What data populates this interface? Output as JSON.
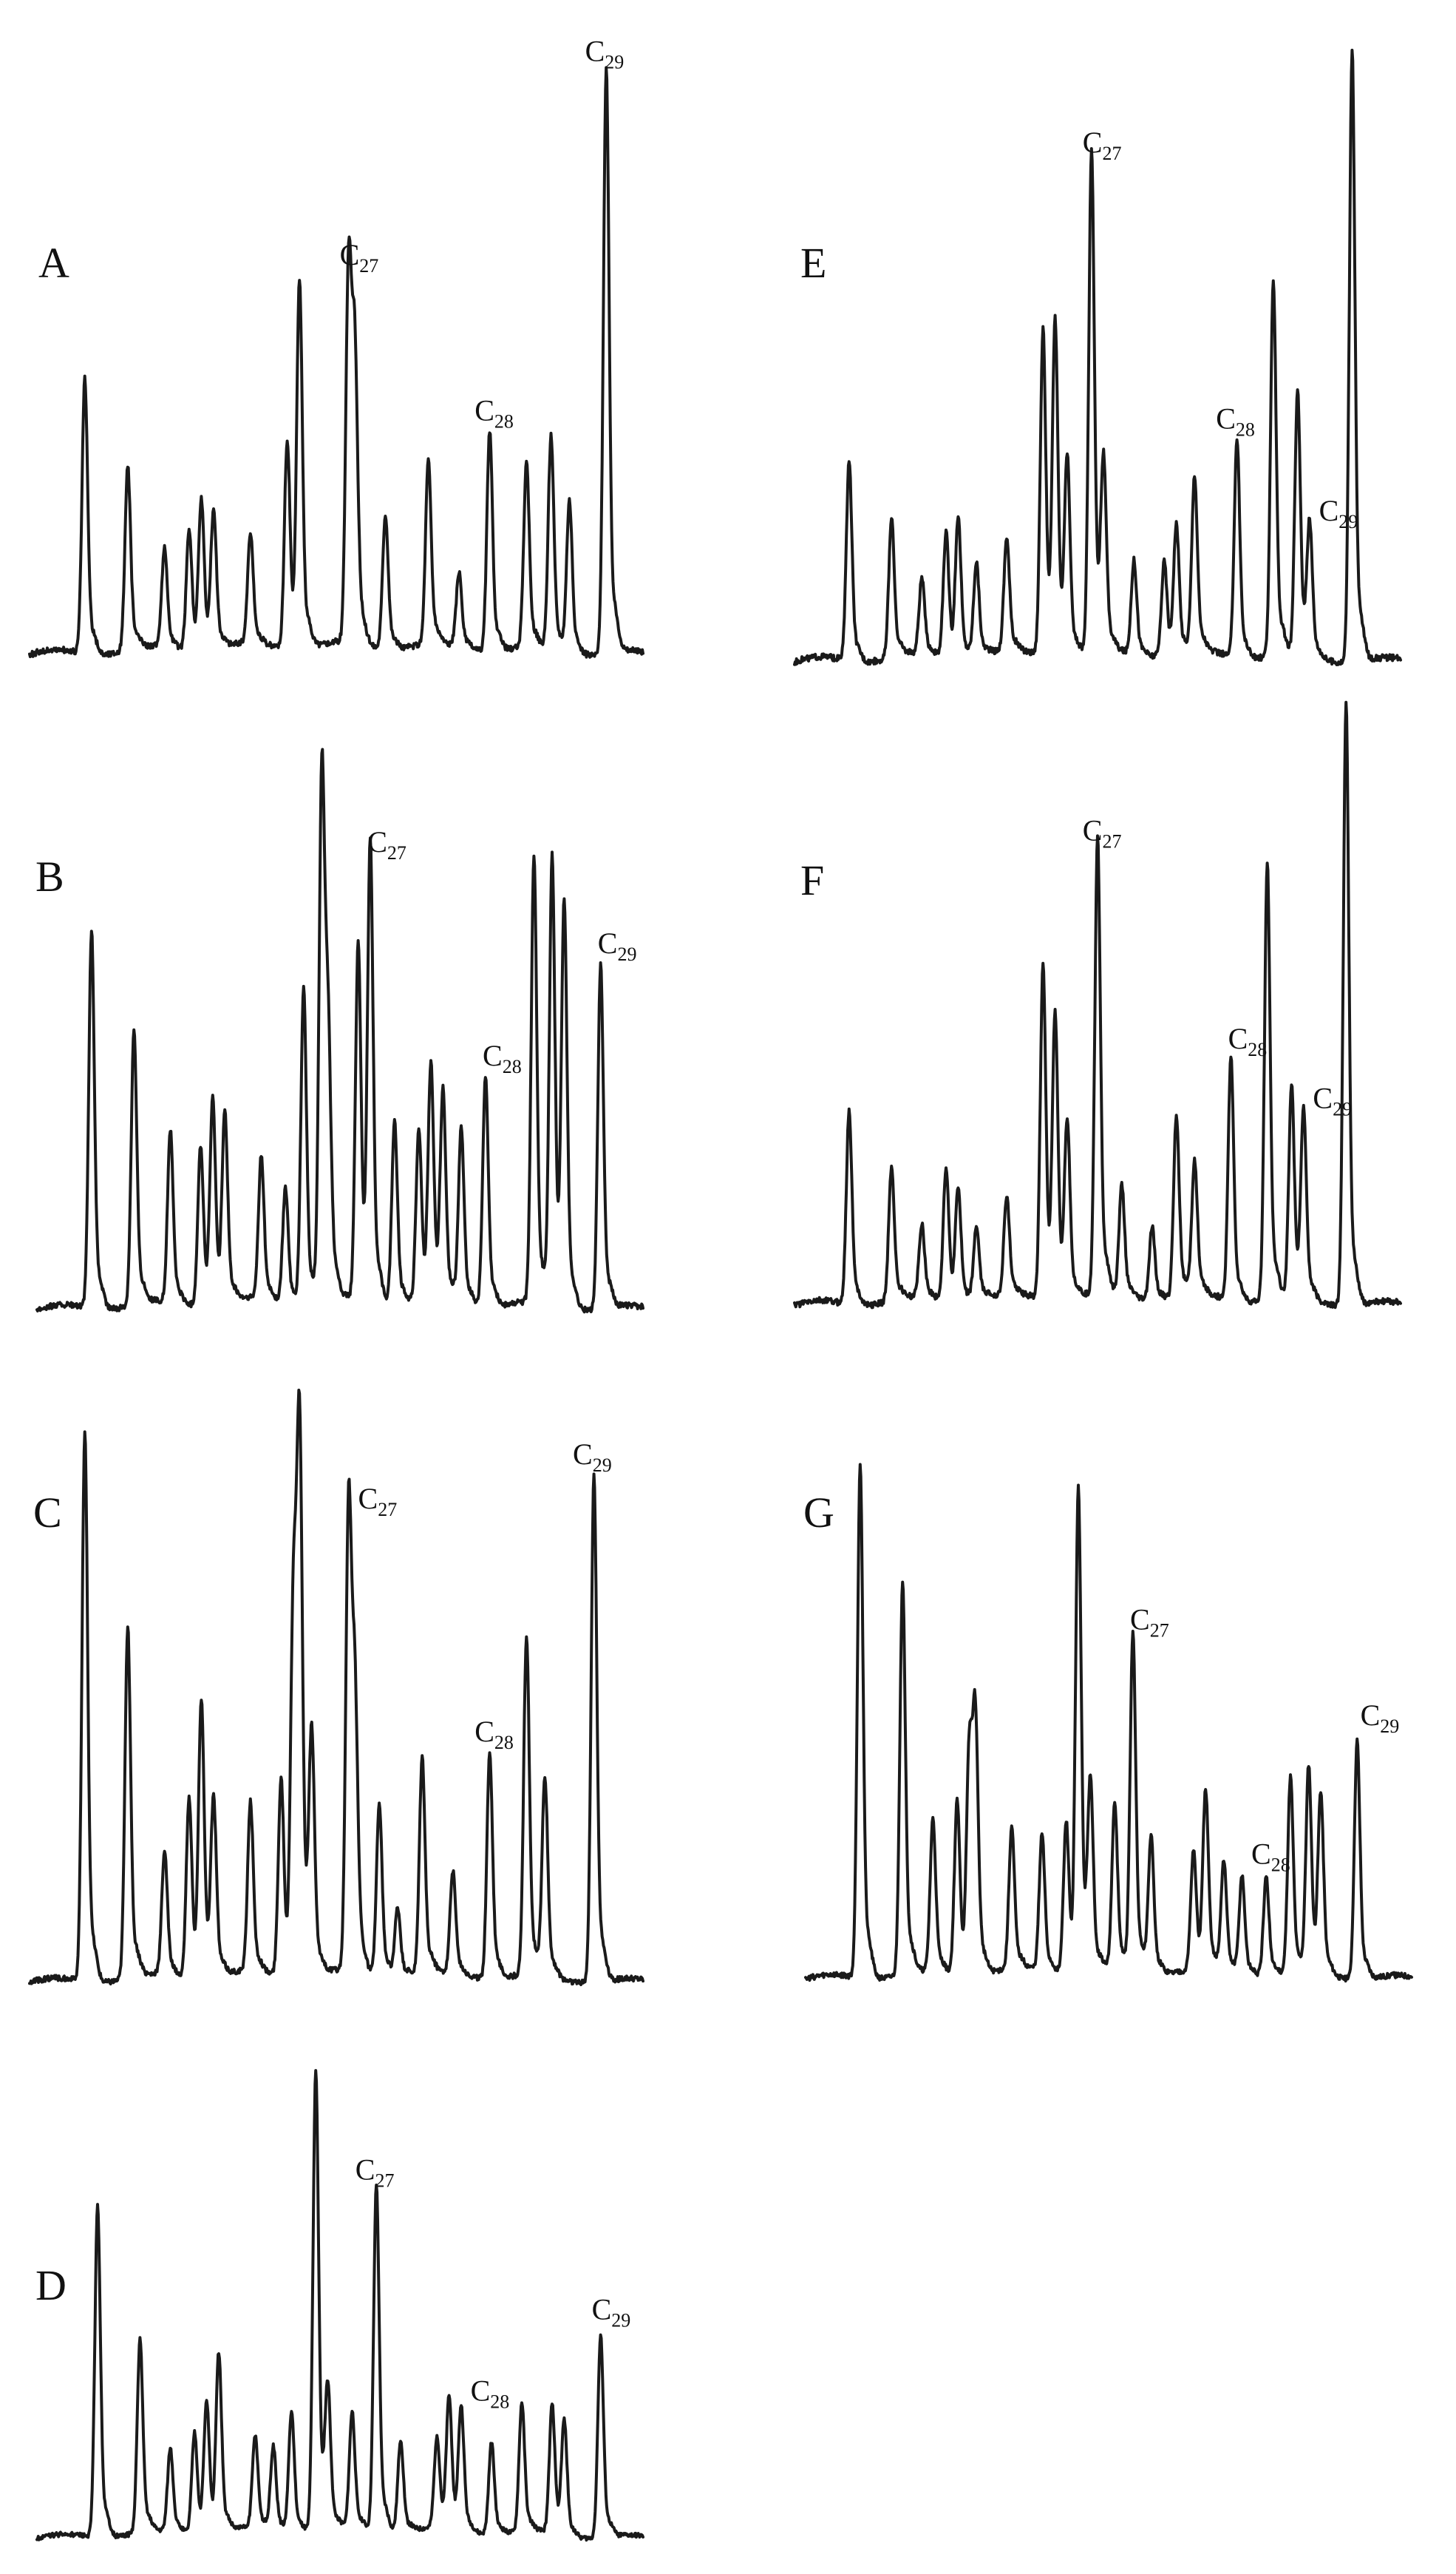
{
  "chart_data": [
    {
      "type": "line",
      "panel": "A",
      "peak_labels": [
        {
          "text": "C",
          "sub": "27",
          "x": 0.52
        },
        {
          "text": "C",
          "sub": "28",
          "x": 0.74
        },
        {
          "text": "C",
          "sub": "29",
          "x": 0.92
        }
      ],
      "peaks": [
        {
          "x": 0.09,
          "h": 0.45
        },
        {
          "x": 0.16,
          "h": 0.3
        },
        {
          "x": 0.22,
          "h": 0.16
        },
        {
          "x": 0.26,
          "h": 0.2
        },
        {
          "x": 0.28,
          "h": 0.24
        },
        {
          "x": 0.3,
          "h": 0.22
        },
        {
          "x": 0.36,
          "h": 0.18
        },
        {
          "x": 0.42,
          "h": 0.34
        },
        {
          "x": 0.44,
          "h": 0.59
        },
        {
          "x": 0.52,
          "h": 0.62
        },
        {
          "x": 0.53,
          "h": 0.44
        },
        {
          "x": 0.58,
          "h": 0.22
        },
        {
          "x": 0.65,
          "h": 0.3
        },
        {
          "x": 0.7,
          "h": 0.12
        },
        {
          "x": 0.75,
          "h": 0.36
        },
        {
          "x": 0.81,
          "h": 0.3
        },
        {
          "x": 0.85,
          "h": 0.35
        },
        {
          "x": 0.88,
          "h": 0.25
        },
        {
          "x": 0.94,
          "h": 0.96
        }
      ]
    },
    {
      "type": "line",
      "panel": "B",
      "peak_labels": [
        {
          "text": "C",
          "sub": "27",
          "x": 0.56
        },
        {
          "text": "C",
          "sub": "28",
          "x": 0.75
        },
        {
          "text": "C",
          "sub": "29",
          "x": 0.94
        }
      ],
      "peaks": [
        {
          "x": 0.09,
          "h": 0.66
        },
        {
          "x": 0.16,
          "h": 0.48
        },
        {
          "x": 0.22,
          "h": 0.3
        },
        {
          "x": 0.27,
          "h": 0.28
        },
        {
          "x": 0.29,
          "h": 0.35
        },
        {
          "x": 0.31,
          "h": 0.32
        },
        {
          "x": 0.37,
          "h": 0.25
        },
        {
          "x": 0.41,
          "h": 0.2
        },
        {
          "x": 0.44,
          "h": 0.55
        },
        {
          "x": 0.47,
          "h": 0.92
        },
        {
          "x": 0.48,
          "h": 0.42
        },
        {
          "x": 0.53,
          "h": 0.62
        },
        {
          "x": 0.55,
          "h": 0.78
        },
        {
          "x": 0.59,
          "h": 0.32
        },
        {
          "x": 0.63,
          "h": 0.3
        },
        {
          "x": 0.65,
          "h": 0.4
        },
        {
          "x": 0.67,
          "h": 0.35
        },
        {
          "x": 0.7,
          "h": 0.3
        },
        {
          "x": 0.74,
          "h": 0.4
        },
        {
          "x": 0.82,
          "h": 0.78
        },
        {
          "x": 0.85,
          "h": 0.78
        },
        {
          "x": 0.87,
          "h": 0.68
        },
        {
          "x": 0.93,
          "h": 0.6
        }
      ]
    },
    {
      "type": "line",
      "panel": "C",
      "peak_labels": [
        {
          "text": "C",
          "sub": "27",
          "x": 0.55
        },
        {
          "text": "C",
          "sub": "28",
          "x": 0.74
        },
        {
          "text": "C",
          "sub": "29",
          "x": 0.9
        }
      ],
      "peaks": [
        {
          "x": 0.09,
          "h": 0.97
        },
        {
          "x": 0.16,
          "h": 0.62
        },
        {
          "x": 0.22,
          "h": 0.22
        },
        {
          "x": 0.26,
          "h": 0.32
        },
        {
          "x": 0.28,
          "h": 0.48
        },
        {
          "x": 0.3,
          "h": 0.3
        },
        {
          "x": 0.36,
          "h": 0.3
        },
        {
          "x": 0.41,
          "h": 0.35
        },
        {
          "x": 0.43,
          "h": 0.65
        },
        {
          "x": 0.44,
          "h": 0.93
        },
        {
          "x": 0.46,
          "h": 0.4
        },
        {
          "x": 0.52,
          "h": 0.82
        },
        {
          "x": 0.53,
          "h": 0.45
        },
        {
          "x": 0.57,
          "h": 0.3
        },
        {
          "x": 0.6,
          "h": 0.12
        },
        {
          "x": 0.64,
          "h": 0.38
        },
        {
          "x": 0.69,
          "h": 0.18
        },
        {
          "x": 0.75,
          "h": 0.4
        },
        {
          "x": 0.81,
          "h": 0.6
        },
        {
          "x": 0.84,
          "h": 0.35
        },
        {
          "x": 0.92,
          "h": 0.9
        }
      ]
    },
    {
      "type": "line",
      "panel": "D",
      "peak_labels": [
        {
          "text": "C",
          "sub": "27",
          "x": 0.54
        },
        {
          "text": "C",
          "sub": "28",
          "x": 0.73
        },
        {
          "text": "C",
          "sub": "29",
          "x": 0.93
        }
      ],
      "peaks": [
        {
          "x": 0.1,
          "h": 0.72
        },
        {
          "x": 0.17,
          "h": 0.42
        },
        {
          "x": 0.22,
          "h": 0.18
        },
        {
          "x": 0.26,
          "h": 0.22
        },
        {
          "x": 0.28,
          "h": 0.28
        },
        {
          "x": 0.3,
          "h": 0.38
        },
        {
          "x": 0.36,
          "h": 0.2
        },
        {
          "x": 0.39,
          "h": 0.18
        },
        {
          "x": 0.42,
          "h": 0.26
        },
        {
          "x": 0.46,
          "h": 1.0
        },
        {
          "x": 0.48,
          "h": 0.28
        },
        {
          "x": 0.52,
          "h": 0.25
        },
        {
          "x": 0.56,
          "h": 0.75
        },
        {
          "x": 0.6,
          "h": 0.2
        },
        {
          "x": 0.66,
          "h": 0.2
        },
        {
          "x": 0.68,
          "h": 0.28
        },
        {
          "x": 0.7,
          "h": 0.26
        },
        {
          "x": 0.75,
          "h": 0.2
        },
        {
          "x": 0.8,
          "h": 0.28
        },
        {
          "x": 0.85,
          "h": 0.28
        },
        {
          "x": 0.87,
          "h": 0.24
        },
        {
          "x": 0.93,
          "h": 0.44
        }
      ]
    },
    {
      "type": "line",
      "panel": "E",
      "peak_labels": [
        {
          "text": "C",
          "sub": "27",
          "x": 0.49
        },
        {
          "text": "C",
          "sub": "28",
          "x": 0.71
        },
        {
          "text": "C",
          "sub": "29",
          "x": 0.88
        }
      ],
      "peaks": [
        {
          "x": 0.09,
          "h": 0.32
        },
        {
          "x": 0.16,
          "h": 0.22
        },
        {
          "x": 0.21,
          "h": 0.12
        },
        {
          "x": 0.25,
          "h": 0.2
        },
        {
          "x": 0.27,
          "h": 0.22
        },
        {
          "x": 0.3,
          "h": 0.15
        },
        {
          "x": 0.35,
          "h": 0.18
        },
        {
          "x": 0.41,
          "h": 0.52
        },
        {
          "x": 0.43,
          "h": 0.52
        },
        {
          "x": 0.45,
          "h": 0.3
        },
        {
          "x": 0.49,
          "h": 0.8
        },
        {
          "x": 0.51,
          "h": 0.28
        },
        {
          "x": 0.56,
          "h": 0.15
        },
        {
          "x": 0.61,
          "h": 0.15
        },
        {
          "x": 0.63,
          "h": 0.2
        },
        {
          "x": 0.66,
          "h": 0.28
        },
        {
          "x": 0.73,
          "h": 0.35
        },
        {
          "x": 0.79,
          "h": 0.6
        },
        {
          "x": 0.83,
          "h": 0.42
        },
        {
          "x": 0.85,
          "h": 0.2
        },
        {
          "x": 0.92,
          "h": 0.98
        }
      ]
    },
    {
      "type": "line",
      "panel": "F",
      "peak_labels": [
        {
          "text": "C",
          "sub": "27",
          "x": 0.49
        },
        {
          "text": "C",
          "sub": "28",
          "x": 0.73
        },
        {
          "text": "C",
          "sub": "29",
          "x": 0.87
        }
      ],
      "peaks": [
        {
          "x": 0.09,
          "h": 0.32
        },
        {
          "x": 0.16,
          "h": 0.22
        },
        {
          "x": 0.21,
          "h": 0.12
        },
        {
          "x": 0.25,
          "h": 0.22
        },
        {
          "x": 0.27,
          "h": 0.18
        },
        {
          "x": 0.3,
          "h": 0.12
        },
        {
          "x": 0.35,
          "h": 0.16
        },
        {
          "x": 0.41,
          "h": 0.55
        },
        {
          "x": 0.43,
          "h": 0.45
        },
        {
          "x": 0.45,
          "h": 0.28
        },
        {
          "x": 0.5,
          "h": 0.75
        },
        {
          "x": 0.54,
          "h": 0.18
        },
        {
          "x": 0.59,
          "h": 0.12
        },
        {
          "x": 0.63,
          "h": 0.3
        },
        {
          "x": 0.66,
          "h": 0.22
        },
        {
          "x": 0.72,
          "h": 0.4
        },
        {
          "x": 0.78,
          "h": 0.72
        },
        {
          "x": 0.82,
          "h": 0.35
        },
        {
          "x": 0.84,
          "h": 0.3
        },
        {
          "x": 0.91,
          "h": 0.99
        }
      ]
    },
    {
      "type": "line",
      "panel": "G",
      "peak_labels": [
        {
          "text": "C",
          "sub": "27",
          "x": 0.55
        },
        {
          "text": "C",
          "sub": "28",
          "x": 0.75
        },
        {
          "text": "C",
          "sub": "29",
          "x": 0.93
        }
      ],
      "peaks": [
        {
          "x": 0.09,
          "h": 0.95
        },
        {
          "x": 0.16,
          "h": 0.72
        },
        {
          "x": 0.21,
          "h": 0.28
        },
        {
          "x": 0.25,
          "h": 0.32
        },
        {
          "x": 0.27,
          "h": 0.4
        },
        {
          "x": 0.28,
          "h": 0.45
        },
        {
          "x": 0.34,
          "h": 0.26
        },
        {
          "x": 0.39,
          "h": 0.25
        },
        {
          "x": 0.43,
          "h": 0.28
        },
        {
          "x": 0.45,
          "h": 0.88
        },
        {
          "x": 0.47,
          "h": 0.32
        },
        {
          "x": 0.51,
          "h": 0.3
        },
        {
          "x": 0.54,
          "h": 0.62
        },
        {
          "x": 0.57,
          "h": 0.25
        },
        {
          "x": 0.64,
          "h": 0.22
        },
        {
          "x": 0.66,
          "h": 0.32
        },
        {
          "x": 0.69,
          "h": 0.2
        },
        {
          "x": 0.72,
          "h": 0.18
        },
        {
          "x": 0.76,
          "h": 0.18
        },
        {
          "x": 0.8,
          "h": 0.36
        },
        {
          "x": 0.83,
          "h": 0.38
        },
        {
          "x": 0.85,
          "h": 0.32
        },
        {
          "x": 0.91,
          "h": 0.44
        }
      ]
    }
  ]
}
